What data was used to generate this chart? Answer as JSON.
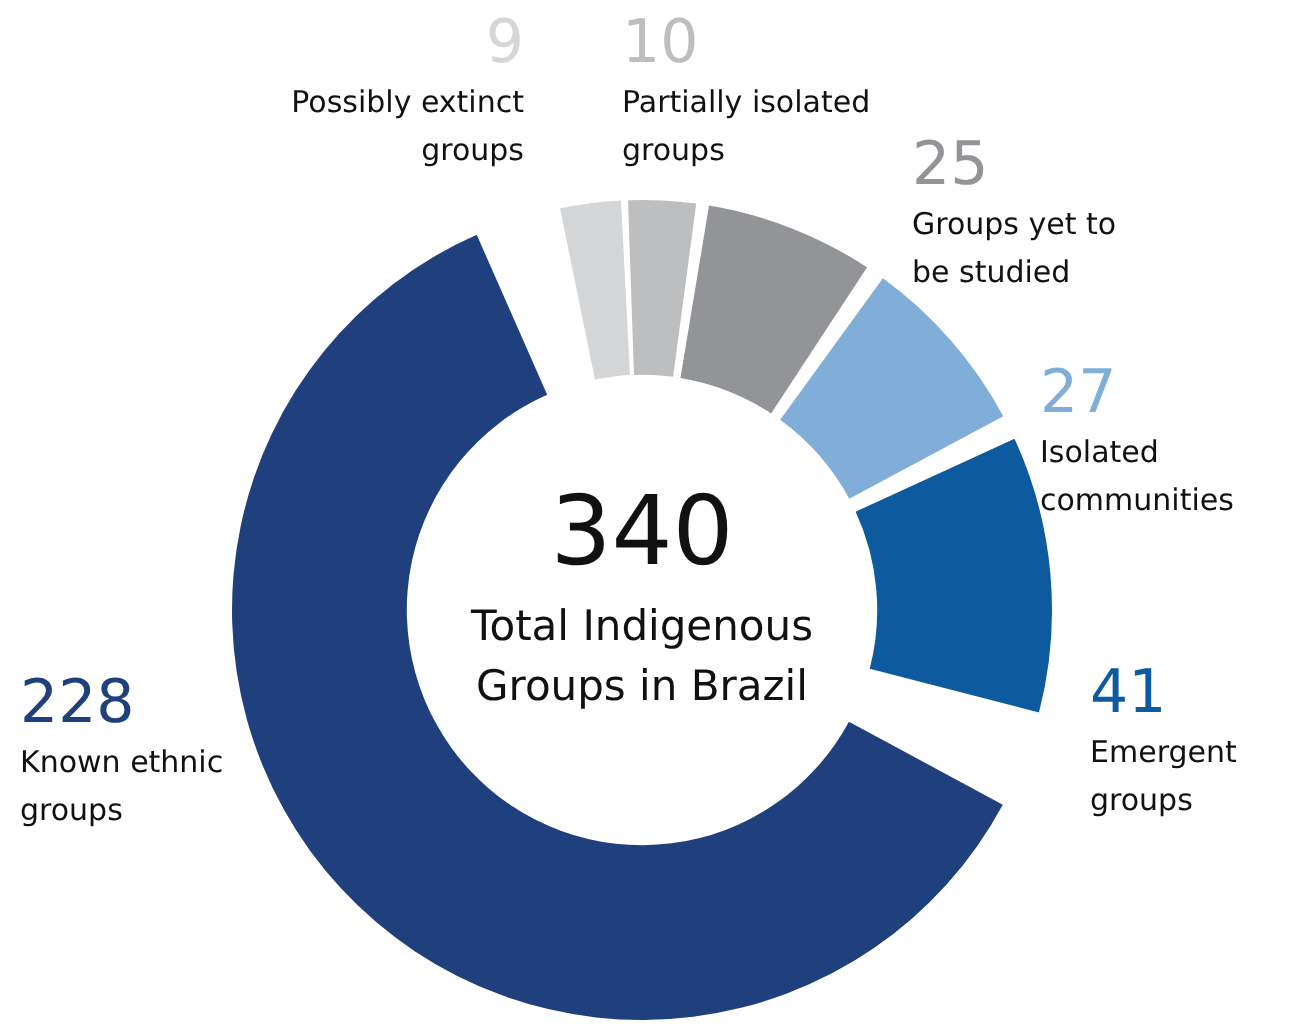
{
  "chart_data": {
    "type": "donut",
    "title": "Total Indigenous Groups in Brazil",
    "annotations": [
      "340"
    ],
    "categories": [
      "Possibly extinct groups",
      "Partially isolated groups",
      "Groups yet to be studied",
      "Isolated communities",
      "Emergent groups",
      "Known ethnic groups"
    ],
    "values": [
      9,
      10,
      25,
      27,
      41,
      228
    ],
    "colors": [
      "#d5d6d7",
      "#bdbec0",
      "#939497",
      "#80aed9",
      "#0e5a9e",
      "#20407d"
    ],
    "data_labels": true,
    "legend": false
  }
}
